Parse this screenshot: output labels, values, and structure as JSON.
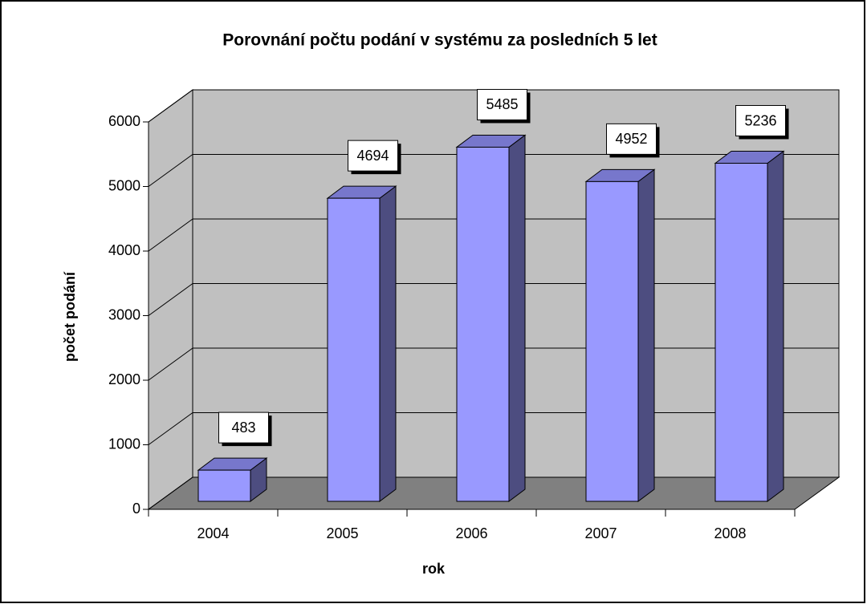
{
  "chart_data": {
    "type": "bar",
    "title": "Porovnání počtu podání v systému za posledních 5 let",
    "categories": [
      "2004",
      "2005",
      "2006",
      "2007",
      "2008"
    ],
    "values": [
      483,
      4694,
      5485,
      4952,
      5236
    ],
    "color": "#9999ff",
    "ylim": [
      0,
      6000
    ],
    "yticks": [
      0,
      1000,
      2000,
      3000,
      4000,
      5000,
      6000
    ],
    "xlabel": "rok",
    "ylabel": "počet podání",
    "grid": true
  }
}
